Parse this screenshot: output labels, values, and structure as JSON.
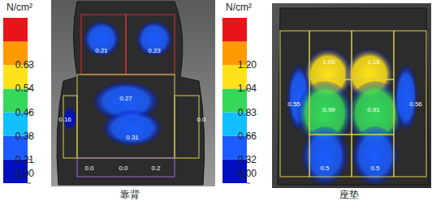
{
  "chart_data": [
    {
      "type": "pressure_map",
      "title": "靠背",
      "color_bar": {
        "label": "N/cm²",
        "ticks": [
          0.0,
          0.21,
          0.38,
          0.46,
          0.54,
          0.63
        ],
        "tick_labels": [
          "0.00",
          "0.21",
          "0.38",
          "0.46",
          "0.54",
          "0.63"
        ],
        "colors": [
          "#0010c0",
          "#1a5cff",
          "#12bfff",
          "#35d85a",
          "#ffe21a",
          "#ff9a00",
          "#e8141a"
        ]
      },
      "values": [
        0.21,
        0.23,
        0.27,
        0.16,
        0,
        0.31,
        0,
        0,
        0.2
      ],
      "value_labels": [
        "0.21",
        "0.23",
        "0.27",
        "0.16",
        "0.0",
        "0.31",
        "0.0",
        "0.0",
        "0.2"
      ]
    },
    {
      "type": "pressure_map",
      "title": "座垫",
      "color_bar": {
        "label": "N/cm²",
        "ticks": [
          0.0,
          0.32,
          0.66,
          0.83,
          1.04,
          1.2
        ],
        "tick_labels": [
          "0.00",
          "0.32",
          "0.66",
          "0.83",
          "1.04",
          "1.20"
        ],
        "colors": [
          "#0010c0",
          "#1a5cff",
          "#12bfff",
          "#35d85a",
          "#ffe21a",
          "#ff9a00",
          "#e8141a"
        ]
      },
      "values": [
        1.05,
        1.16,
        0.55,
        0.99,
        0.91,
        0.56,
        0.5,
        0.5
      ],
      "value_labels": [
        "1.05",
        "1.16",
        "0.55",
        "0.99",
        "0.91",
        "0.56",
        "0.5",
        "0.5"
      ]
    }
  ]
}
